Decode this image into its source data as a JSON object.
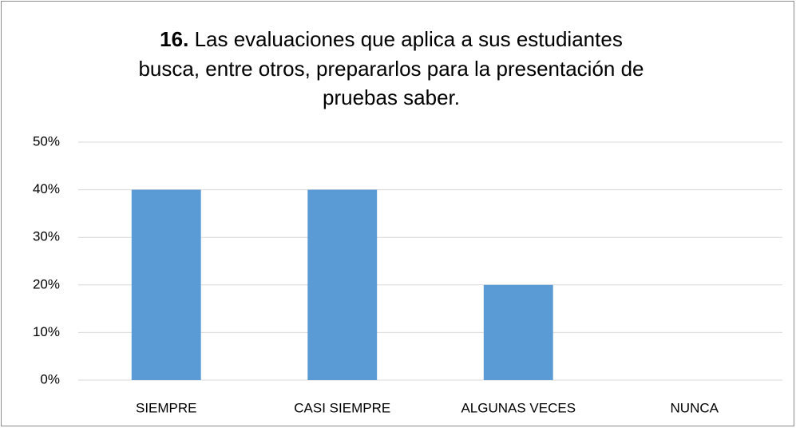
{
  "chart_data": {
    "type": "bar",
    "title": {
      "number": "16.",
      "lines": [
        "Las evaluaciones que aplica a sus estudiantes",
        "busca, entre otros, prepararlos para la presentación de",
        "pruebas saber."
      ]
    },
    "categories": [
      "SIEMPRE",
      "CASI SIEMPRE",
      "ALGUNAS VECES",
      "NUNCA"
    ],
    "values": [
      40,
      40,
      20,
      0
    ],
    "color": "#5b9bd5",
    "ylim": [
      0,
      50
    ],
    "yticks": [
      {
        "value": 0,
        "label": "0%"
      },
      {
        "value": 10,
        "label": "10%"
      },
      {
        "value": 20,
        "label": "20%"
      },
      {
        "value": 30,
        "label": "30%"
      },
      {
        "value": 40,
        "label": "40%"
      },
      {
        "value": 50,
        "label": "50%"
      }
    ],
    "grid": true
  }
}
